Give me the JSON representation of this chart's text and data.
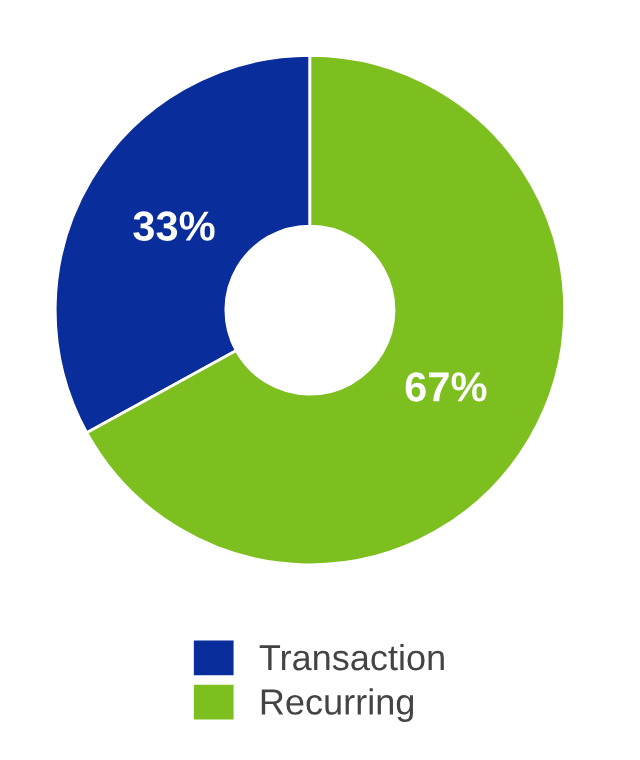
{
  "chart_data": {
    "type": "donut",
    "categories": [
      "Transaction",
      "Recurring"
    ],
    "values": [
      33,
      67
    ],
    "colors": [
      "#0a2d9c",
      "#7cbf1e"
    ],
    "value_labels": [
      "33%",
      "67%"
    ],
    "legend": "bottom"
  }
}
